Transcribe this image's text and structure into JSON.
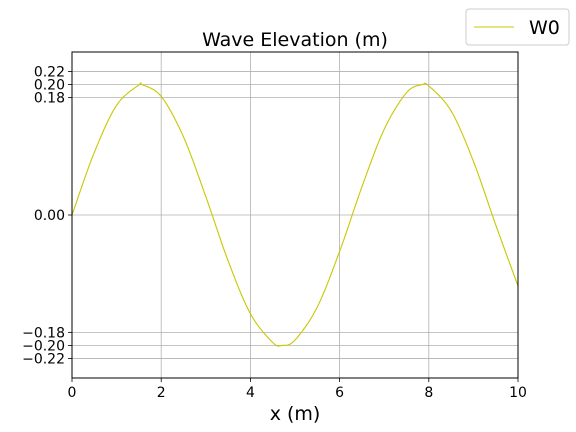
{
  "chart_data": {
    "type": "line",
    "title": "Wave Elevation (m)",
    "xlabel": "x (m)",
    "ylabel": "",
    "xlim": [
      0,
      10
    ],
    "ylim": [
      -0.25,
      0.25
    ],
    "x_ticks": [
      0,
      2,
      4,
      6,
      8,
      10
    ],
    "x_tick_labels": [
      "0",
      "2",
      "4",
      "6",
      "8",
      "10"
    ],
    "y_ticks": [
      -0.22,
      -0.2,
      -0.18,
      0.0,
      0.18,
      0.2,
      0.22
    ],
    "y_tick_labels": [
      "−0.22",
      "−0.20",
      "−0.18",
      "0.00",
      "0.18",
      "0.20",
      "0.22"
    ],
    "grid": true,
    "legend_position": "top-right (outside)",
    "series": [
      {
        "name": "W0",
        "color": "#c8c800",
        "x": [
          0,
          0.5,
          1.0,
          1.5,
          1.571,
          2.0,
          2.5,
          3.0,
          3.5,
          4.0,
          4.5,
          4.712,
          5.0,
          5.5,
          6.0,
          6.5,
          7.0,
          7.5,
          7.854,
          8.0,
          8.5,
          9.0,
          9.5,
          10.0
        ],
        "y": [
          0.0,
          0.0959,
          0.1683,
          0.1995,
          0.2,
          0.1819,
          0.1197,
          0.0282,
          -0.0702,
          -0.1514,
          -0.1955,
          -0.2,
          -0.1918,
          -0.1411,
          -0.0559,
          0.043,
          0.1314,
          0.1876,
          0.2,
          0.1979,
          0.1596,
          0.0824,
          -0.015,
          -0.1088
        ]
      }
    ]
  }
}
